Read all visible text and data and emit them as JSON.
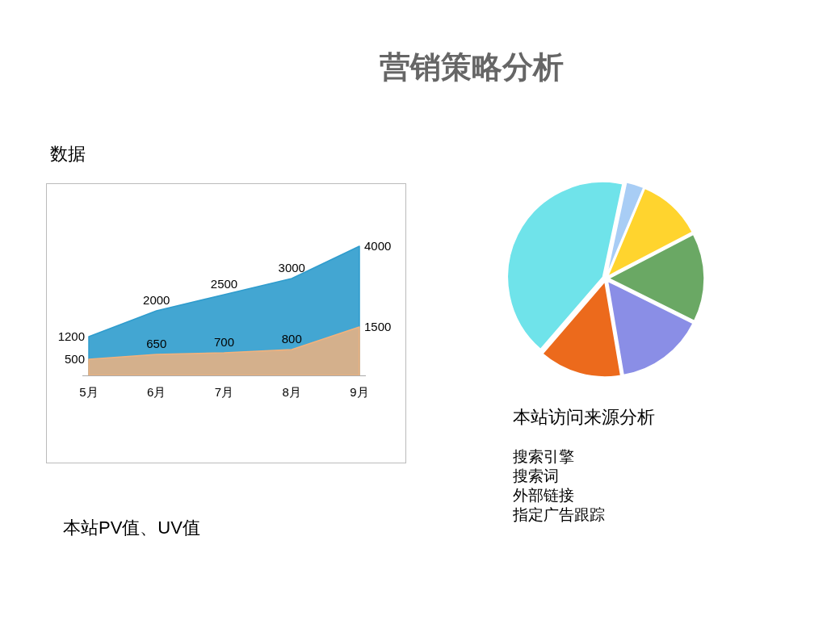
{
  "chart_data": [
    {
      "type": "area",
      "title": "营销策略分析",
      "subtitle": "数据",
      "annotations": [
        "本站PV值、UV值"
      ],
      "categories": [
        "5月",
        "6月",
        "7月",
        "8月",
        "9月"
      ],
      "series": [
        {
          "color": "#2f9ccd",
          "values": [
            1200,
            2000,
            2500,
            3000,
            4000
          ]
        },
        {
          "color": "#f4b27c",
          "values": [
            500,
            650,
            700,
            800,
            1500
          ]
        }
      ],
      "data_labels": true
    },
    {
      "type": "pie",
      "title": "本站访问来源分析",
      "annotations": [
        "搜索引擎",
        "搜索词",
        "外部链接",
        "指定广告跟踪"
      ],
      "categories": [
        null,
        null,
        null,
        null,
        null,
        null
      ],
      "values": [
        3,
        11,
        15,
        15,
        14,
        42
      ],
      "colors": [
        "#a8cdf5",
        "#ffd42e",
        "#6aa864",
        "#8a8ee6",
        "#ec6a1c",
        "#6fe3ea"
      ]
    }
  ]
}
